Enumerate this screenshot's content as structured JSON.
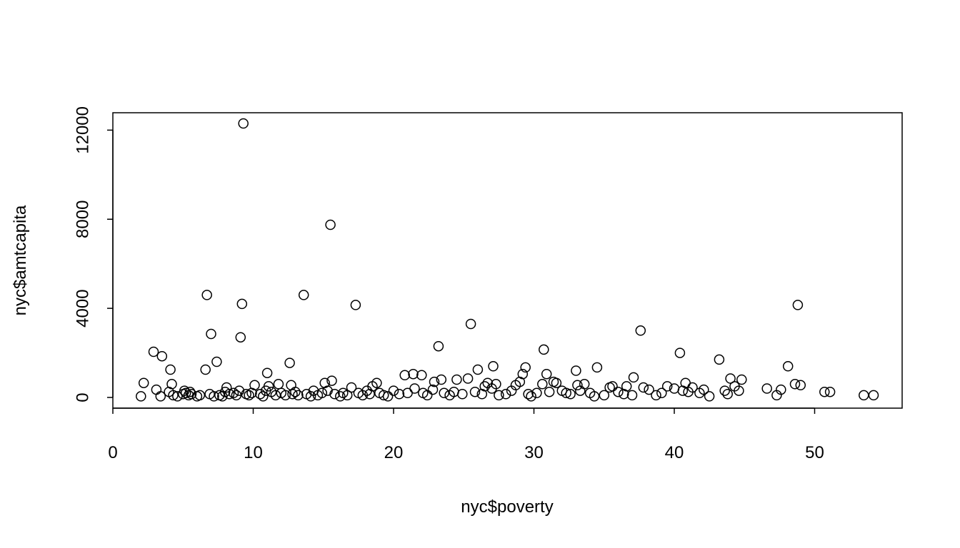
{
  "chart_data": {
    "type": "scatter",
    "title": "",
    "xlabel": "nyc$poverty",
    "ylabel": "nyc$amtcapita",
    "xlim": [
      0,
      55
    ],
    "ylim": [
      0,
      12400
    ],
    "x_ticks": [
      0,
      10,
      20,
      30,
      40,
      50
    ],
    "x_tick_labels": [
      "0",
      "10",
      "20",
      "30",
      "40",
      "50"
    ],
    "y_ticks": [
      0,
      4000,
      8000,
      12000
    ],
    "y_tick_labels": [
      "0",
      "4000",
      "8000",
      "12000"
    ],
    "grid": false,
    "legend": false,
    "points": [
      [
        2.0,
        50
      ],
      [
        2.2,
        650
      ],
      [
        2.9,
        2050
      ],
      [
        3.1,
        350
      ],
      [
        3.4,
        50
      ],
      [
        3.5,
        1850
      ],
      [
        4.0,
        250
      ],
      [
        4.1,
        1250
      ],
      [
        4.2,
        600
      ],
      [
        4.3,
        100
      ],
      [
        4.6,
        50
      ],
      [
        5.0,
        150
      ],
      [
        5.1,
        300
      ],
      [
        5.2,
        200
      ],
      [
        5.4,
        100
      ],
      [
        5.5,
        250
      ],
      [
        5.6,
        150
      ],
      [
        6.0,
        50
      ],
      [
        6.2,
        100
      ],
      [
        6.6,
        1250
      ],
      [
        6.7,
        4600
      ],
      [
        6.9,
        150
      ],
      [
        7.0,
        2850
      ],
      [
        7.2,
        50
      ],
      [
        7.4,
        1600
      ],
      [
        7.6,
        100
      ],
      [
        7.8,
        50
      ],
      [
        8.0,
        250
      ],
      [
        8.1,
        450
      ],
      [
        8.3,
        150
      ],
      [
        8.6,
        200
      ],
      [
        8.8,
        100
      ],
      [
        9.0,
        300
      ],
      [
        9.1,
        2700
      ],
      [
        9.2,
        4200
      ],
      [
        9.3,
        12300
      ],
      [
        9.5,
        150
      ],
      [
        9.7,
        100
      ],
      [
        9.9,
        200
      ],
      [
        10.1,
        550
      ],
      [
        10.5,
        150
      ],
      [
        10.7,
        50
      ],
      [
        10.9,
        300
      ],
      [
        11.0,
        1100
      ],
      [
        11.1,
        500
      ],
      [
        11.3,
        250
      ],
      [
        11.6,
        100
      ],
      [
        11.8,
        600
      ],
      [
        12.0,
        200
      ],
      [
        12.3,
        100
      ],
      [
        12.6,
        1550
      ],
      [
        12.7,
        550
      ],
      [
        12.8,
        150
      ],
      [
        13.0,
        250
      ],
      [
        13.2,
        100
      ],
      [
        13.6,
        4600
      ],
      [
        13.8,
        150
      ],
      [
        14.1,
        50
      ],
      [
        14.3,
        300
      ],
      [
        14.6,
        100
      ],
      [
        14.9,
        200
      ],
      [
        15.1,
        650
      ],
      [
        15.3,
        300
      ],
      [
        15.5,
        7750
      ],
      [
        15.6,
        750
      ],
      [
        15.8,
        150
      ],
      [
        16.2,
        50
      ],
      [
        16.4,
        200
      ],
      [
        16.7,
        100
      ],
      [
        17.0,
        450
      ],
      [
        17.3,
        4150
      ],
      [
        17.5,
        200
      ],
      [
        17.8,
        100
      ],
      [
        18.1,
        300
      ],
      [
        18.3,
        150
      ],
      [
        18.5,
        500
      ],
      [
        18.8,
        650
      ],
      [
        19.0,
        200
      ],
      [
        19.3,
        100
      ],
      [
        19.6,
        50
      ],
      [
        20.0,
        300
      ],
      [
        20.4,
        150
      ],
      [
        20.8,
        1000
      ],
      [
        21.0,
        200
      ],
      [
        21.4,
        1050
      ],
      [
        21.5,
        400
      ],
      [
        22.0,
        1000
      ],
      [
        22.1,
        200
      ],
      [
        22.4,
        100
      ],
      [
        22.8,
        350
      ],
      [
        22.9,
        700
      ],
      [
        23.2,
        2300
      ],
      [
        23.4,
        800
      ],
      [
        23.6,
        200
      ],
      [
        24.0,
        100
      ],
      [
        24.3,
        250
      ],
      [
        24.5,
        800
      ],
      [
        24.9,
        150
      ],
      [
        25.3,
        850
      ],
      [
        25.5,
        3300
      ],
      [
        25.8,
        250
      ],
      [
        26.0,
        1250
      ],
      [
        26.3,
        150
      ],
      [
        26.5,
        500
      ],
      [
        26.7,
        650
      ],
      [
        27.0,
        400
      ],
      [
        27.1,
        1400
      ],
      [
        27.3,
        600
      ],
      [
        27.5,
        100
      ],
      [
        28.0,
        150
      ],
      [
        28.4,
        300
      ],
      [
        28.7,
        550
      ],
      [
        29.0,
        700
      ],
      [
        29.2,
        1050
      ],
      [
        29.4,
        1350
      ],
      [
        29.6,
        150
      ],
      [
        29.8,
        50
      ],
      [
        30.2,
        200
      ],
      [
        30.6,
        600
      ],
      [
        30.7,
        2150
      ],
      [
        30.9,
        1050
      ],
      [
        31.1,
        250
      ],
      [
        31.4,
        700
      ],
      [
        31.6,
        650
      ],
      [
        32.0,
        300
      ],
      [
        32.3,
        200
      ],
      [
        32.6,
        150
      ],
      [
        33.0,
        1200
      ],
      [
        33.1,
        550
      ],
      [
        33.3,
        300
      ],
      [
        33.6,
        600
      ],
      [
        34.0,
        200
      ],
      [
        34.3,
        50
      ],
      [
        34.5,
        1350
      ],
      [
        35.0,
        100
      ],
      [
        35.4,
        450
      ],
      [
        35.6,
        500
      ],
      [
        36.0,
        250
      ],
      [
        36.4,
        150
      ],
      [
        36.6,
        500
      ],
      [
        37.0,
        100
      ],
      [
        37.1,
        900
      ],
      [
        37.6,
        3000
      ],
      [
        37.8,
        450
      ],
      [
        38.2,
        350
      ],
      [
        38.7,
        100
      ],
      [
        39.1,
        200
      ],
      [
        39.5,
        500
      ],
      [
        40.0,
        400
      ],
      [
        40.4,
        2000
      ],
      [
        40.6,
        300
      ],
      [
        40.8,
        650
      ],
      [
        41.0,
        250
      ],
      [
        41.3,
        450
      ],
      [
        41.8,
        200
      ],
      [
        42.1,
        350
      ],
      [
        42.5,
        50
      ],
      [
        43.2,
        1700
      ],
      [
        43.6,
        300
      ],
      [
        43.8,
        150
      ],
      [
        44.0,
        850
      ],
      [
        44.3,
        500
      ],
      [
        44.6,
        300
      ],
      [
        44.8,
        800
      ],
      [
        46.6,
        400
      ],
      [
        47.3,
        100
      ],
      [
        47.6,
        350
      ],
      [
        48.1,
        1400
      ],
      [
        48.6,
        600
      ],
      [
        48.8,
        4150
      ],
      [
        49.0,
        550
      ],
      [
        50.7,
        250
      ],
      [
        51.1,
        250
      ],
      [
        53.5,
        100
      ],
      [
        54.2,
        100
      ]
    ]
  }
}
